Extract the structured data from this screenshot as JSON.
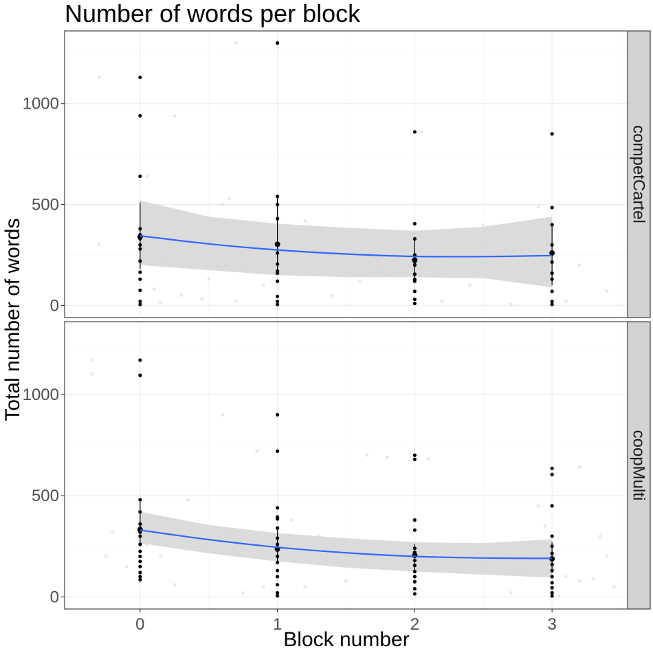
{
  "chart_data": {
    "type": "scatter",
    "title": "Number of words per block",
    "xlabel": "Block number",
    "ylabel": "Total number of words",
    "xlim": [
      -0.55,
      3.55
    ],
    "ylim": [
      -60,
      1360
    ],
    "x_ticks": [
      "0",
      "1",
      "2",
      "3"
    ],
    "y_ticks": [
      "0",
      "500",
      "1000"
    ],
    "grid": true,
    "colors": {
      "smooth_line": "#3366ff",
      "ribbon": "#d9d9d9",
      "points": "#000000",
      "jitter": "#d9d9d9",
      "strip": "#d3d3d3"
    },
    "panels": [
      {
        "name": "competCartel",
        "points": [
          {
            "x": 0,
            "y": 1130
          },
          {
            "x": 0,
            "y": 940
          },
          {
            "x": 0,
            "y": 640
          },
          {
            "x": 0,
            "y": 380
          },
          {
            "x": 0,
            "y": 350
          },
          {
            "x": 0,
            "y": 330
          },
          {
            "x": 0,
            "y": 300
          },
          {
            "x": 0,
            "y": 280
          },
          {
            "x": 0,
            "y": 220
          },
          {
            "x": 0,
            "y": 165
          },
          {
            "x": 0,
            "y": 130
          },
          {
            "x": 0,
            "y": 75
          },
          {
            "x": 0,
            "y": 20
          },
          {
            "x": 0,
            "y": 5
          },
          {
            "x": 1,
            "y": 1300
          },
          {
            "x": 1,
            "y": 540
          },
          {
            "x": 1,
            "y": 500
          },
          {
            "x": 1,
            "y": 430
          },
          {
            "x": 1,
            "y": 300
          },
          {
            "x": 1,
            "y": 260
          },
          {
            "x": 1,
            "y": 205
          },
          {
            "x": 1,
            "y": 170
          },
          {
            "x": 1,
            "y": 160
          },
          {
            "x": 1,
            "y": 120
          },
          {
            "x": 1,
            "y": 45
          },
          {
            "x": 1,
            "y": 20
          },
          {
            "x": 1,
            "y": 5
          },
          {
            "x": 2,
            "y": 860
          },
          {
            "x": 2,
            "y": 405
          },
          {
            "x": 2,
            "y": 330
          },
          {
            "x": 2,
            "y": 250
          },
          {
            "x": 2,
            "y": 230
          },
          {
            "x": 2,
            "y": 215
          },
          {
            "x": 2,
            "y": 200
          },
          {
            "x": 2,
            "y": 155
          },
          {
            "x": 2,
            "y": 130
          },
          {
            "x": 2,
            "y": 120
          },
          {
            "x": 2,
            "y": 70
          },
          {
            "x": 2,
            "y": 30
          },
          {
            "x": 2,
            "y": 10
          },
          {
            "x": 3,
            "y": 850
          },
          {
            "x": 3,
            "y": 485
          },
          {
            "x": 3,
            "y": 400
          },
          {
            "x": 3,
            "y": 300
          },
          {
            "x": 3,
            "y": 260
          },
          {
            "x": 3,
            "y": 215
          },
          {
            "x": 3,
            "y": 160
          },
          {
            "x": 3,
            "y": 130
          },
          {
            "x": 3,
            "y": 70
          },
          {
            "x": 3,
            "y": 20
          },
          {
            "x": 3,
            "y": 5
          }
        ],
        "means": [
          {
            "x": 0,
            "y": 340,
            "lower": 180,
            "upper": 510
          },
          {
            "x": 1,
            "y": 303,
            "lower": 160,
            "upper": 540
          },
          {
            "x": 2,
            "y": 225,
            "lower": 120,
            "upper": 330
          },
          {
            "x": 3,
            "y": 260,
            "lower": 100,
            "upper": 400
          }
        ],
        "smooth": {
          "x": [
            0,
            0.5,
            1,
            1.5,
            2,
            2.5,
            3
          ],
          "y": [
            345,
            305,
            275,
            255,
            243,
            242,
            247
          ],
          "lower": [
            200,
            175,
            150,
            140,
            140,
            135,
            90
          ],
          "upper": [
            520,
            440,
            405,
            385,
            370,
            390,
            440
          ]
        },
        "jitter": [
          {
            "x": -0.3,
            "y": 1130
          },
          {
            "x": 0.25,
            "y": 940
          },
          {
            "x": 0.7,
            "y": 1300
          },
          {
            "x": 0.05,
            "y": 640
          },
          {
            "x": -0.3,
            "y": 300
          },
          {
            "x": 0.65,
            "y": 530
          },
          {
            "x": 0.6,
            "y": 500
          },
          {
            "x": 0.35,
            "y": 300
          },
          {
            "x": 0.15,
            "y": 210
          },
          {
            "x": 0.1,
            "y": 80
          },
          {
            "x": 0.3,
            "y": 50
          },
          {
            "x": 0.7,
            "y": 20
          },
          {
            "x": 0.9,
            "y": 100
          },
          {
            "x": 1.2,
            "y": 420
          },
          {
            "x": 1.4,
            "y": 50
          },
          {
            "x": 1.6,
            "y": 120
          },
          {
            "x": 1.75,
            "y": 200
          },
          {
            "x": 1.8,
            "y": 150
          },
          {
            "x": 2.05,
            "y": 860
          },
          {
            "x": 2.2,
            "y": 20
          },
          {
            "x": 2.4,
            "y": 100
          },
          {
            "x": 2.5,
            "y": 400
          },
          {
            "x": 2.5,
            "y": 320
          },
          {
            "x": 2.7,
            "y": 5
          },
          {
            "x": 2.8,
            "y": 220
          },
          {
            "x": 2.9,
            "y": 490
          },
          {
            "x": 3.1,
            "y": 20
          },
          {
            "x": 3.2,
            "y": 200
          },
          {
            "x": 3.4,
            "y": 70
          },
          {
            "x": 0.45,
            "y": 30
          },
          {
            "x": 0.5,
            "y": 130
          },
          {
            "x": 0.15,
            "y": 15
          }
        ]
      },
      {
        "name": "coopMulti",
        "points": [
          {
            "x": 0,
            "y": 1170
          },
          {
            "x": 0,
            "y": 1095
          },
          {
            "x": 0,
            "y": 480
          },
          {
            "x": 0,
            "y": 420
          },
          {
            "x": 0,
            "y": 360
          },
          {
            "x": 0,
            "y": 340
          },
          {
            "x": 0,
            "y": 320
          },
          {
            "x": 0,
            "y": 300
          },
          {
            "x": 0,
            "y": 260
          },
          {
            "x": 0,
            "y": 225
          },
          {
            "x": 0,
            "y": 200
          },
          {
            "x": 0,
            "y": 175
          },
          {
            "x": 0,
            "y": 150
          },
          {
            "x": 0,
            "y": 120
          },
          {
            "x": 0,
            "y": 100
          },
          {
            "x": 0,
            "y": 85
          },
          {
            "x": 1,
            "y": 900
          },
          {
            "x": 1,
            "y": 720
          },
          {
            "x": 1,
            "y": 440
          },
          {
            "x": 1,
            "y": 395
          },
          {
            "x": 1,
            "y": 385
          },
          {
            "x": 1,
            "y": 340
          },
          {
            "x": 1,
            "y": 290
          },
          {
            "x": 1,
            "y": 260
          },
          {
            "x": 1,
            "y": 240
          },
          {
            "x": 1,
            "y": 230
          },
          {
            "x": 1,
            "y": 200
          },
          {
            "x": 1,
            "y": 170
          },
          {
            "x": 1,
            "y": 130
          },
          {
            "x": 1,
            "y": 100
          },
          {
            "x": 1,
            "y": 60
          },
          {
            "x": 1,
            "y": 20
          },
          {
            "x": 1,
            "y": 5
          },
          {
            "x": 2,
            "y": 700
          },
          {
            "x": 2,
            "y": 680
          },
          {
            "x": 2,
            "y": 380
          },
          {
            "x": 2,
            "y": 330
          },
          {
            "x": 2,
            "y": 240
          },
          {
            "x": 2,
            "y": 220
          },
          {
            "x": 2,
            "y": 205
          },
          {
            "x": 2,
            "y": 180
          },
          {
            "x": 2,
            "y": 155
          },
          {
            "x": 2,
            "y": 125
          },
          {
            "x": 2,
            "y": 100
          },
          {
            "x": 2,
            "y": 75
          },
          {
            "x": 2,
            "y": 40
          },
          {
            "x": 2,
            "y": 15
          },
          {
            "x": 3,
            "y": 635
          },
          {
            "x": 3,
            "y": 605
          },
          {
            "x": 3,
            "y": 450
          },
          {
            "x": 3,
            "y": 300
          },
          {
            "x": 3,
            "y": 250
          },
          {
            "x": 3,
            "y": 215
          },
          {
            "x": 3,
            "y": 190
          },
          {
            "x": 3,
            "y": 160
          },
          {
            "x": 3,
            "y": 130
          },
          {
            "x": 3,
            "y": 100
          },
          {
            "x": 3,
            "y": 70
          },
          {
            "x": 3,
            "y": 45
          },
          {
            "x": 3,
            "y": 20
          },
          {
            "x": 3,
            "y": 5
          }
        ],
        "means": [
          {
            "x": 0,
            "y": 332,
            "lower": 250,
            "upper": 470
          },
          {
            "x": 1,
            "y": 238,
            "lower": 170,
            "upper": 330
          },
          {
            "x": 2,
            "y": 205,
            "lower": 130,
            "upper": 260
          },
          {
            "x": 3,
            "y": 188,
            "lower": 120,
            "upper": 270
          }
        ],
        "smooth": {
          "x": [
            0,
            0.5,
            1,
            1.5,
            2,
            2.5,
            3
          ],
          "y": [
            330,
            283,
            245,
            218,
            200,
            192,
            190
          ],
          "lower": [
            265,
            215,
            175,
            145,
            125,
            110,
            95
          ],
          "upper": [
            420,
            355,
            315,
            290,
            270,
            265,
            285
          ]
        },
        "jitter": [
          {
            "x": -0.35,
            "y": 1170
          },
          {
            "x": -0.35,
            "y": 1100
          },
          {
            "x": -0.2,
            "y": 320
          },
          {
            "x": -0.25,
            "y": 200
          },
          {
            "x": -0.1,
            "y": 150
          },
          {
            "x": 0.05,
            "y": 260
          },
          {
            "x": 0.1,
            "y": 300
          },
          {
            "x": 0.15,
            "y": 200
          },
          {
            "x": 0.25,
            "y": 60
          },
          {
            "x": 0.35,
            "y": 480
          },
          {
            "x": 0.5,
            "y": 300
          },
          {
            "x": 0.6,
            "y": 900
          },
          {
            "x": 0.85,
            "y": 720
          },
          {
            "x": 0.9,
            "y": 50
          },
          {
            "x": 0.75,
            "y": 20
          },
          {
            "x": 1.1,
            "y": 380
          },
          {
            "x": 1.2,
            "y": 50
          },
          {
            "x": 1.3,
            "y": 300
          },
          {
            "x": 1.5,
            "y": 80
          },
          {
            "x": 1.6,
            "y": 150
          },
          {
            "x": 1.65,
            "y": 700
          },
          {
            "x": 1.8,
            "y": 690
          },
          {
            "x": 2.1,
            "y": 680
          },
          {
            "x": 2.3,
            "y": 200
          },
          {
            "x": 2.5,
            "y": 150
          },
          {
            "x": 2.7,
            "y": 20
          },
          {
            "x": 2.9,
            "y": 450
          },
          {
            "x": 2.95,
            "y": 350
          },
          {
            "x": 3.1,
            "y": 100
          },
          {
            "x": 3.2,
            "y": 80
          },
          {
            "x": 3.3,
            "y": 90
          },
          {
            "x": 3.35,
            "y": 300
          },
          {
            "x": 3.4,
            "y": 200
          },
          {
            "x": 3.45,
            "y": 50
          },
          {
            "x": 3.2,
            "y": 640
          },
          {
            "x": 3.05,
            "y": 5
          }
        ]
      }
    ]
  }
}
